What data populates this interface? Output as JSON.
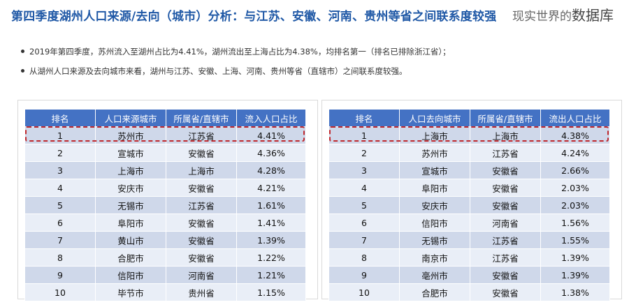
{
  "title": "第四季度湖州人口来源/去向（城市）分析：与江苏、安徽、河南、贵州等省之间联系度较强",
  "watermark": {
    "prefix": "现实世界的",
    "emphasis": "数据库"
  },
  "bullets": [
    "2019年第四季度，苏州流入至湖州占比为4.41%，湖州流出至上海占比为4.38%，均排名第一（排名已排除浙江省）；",
    "从湖州人口来源及去向城市来看，湖州与江苏、安徽、上海、河南、贵州等省（直辖市）之间联系度较强。"
  ],
  "inflow_table": {
    "headers": [
      "排名",
      "人口来源城市",
      "所属省/直辖市",
      "流入人口占比"
    ],
    "rows": [
      [
        "1",
        "苏州市",
        "江苏省",
        "4.41%"
      ],
      [
        "2",
        "宣城市",
        "安徽省",
        "4.36%"
      ],
      [
        "3",
        "上海市",
        "上海市",
        "4.28%"
      ],
      [
        "4",
        "安庆市",
        "安徽省",
        "4.21%"
      ],
      [
        "5",
        "无锡市",
        "江苏省",
        "1.61%"
      ],
      [
        "6",
        "阜阳市",
        "安徽省",
        "1.41%"
      ],
      [
        "7",
        "黄山市",
        "安徽省",
        "1.39%"
      ],
      [
        "8",
        "合肥市",
        "安徽省",
        "1.22%"
      ],
      [
        "9",
        "信阳市",
        "河南省",
        "1.21%"
      ],
      [
        "10",
        "毕节市",
        "贵州省",
        "1.15%"
      ]
    ]
  },
  "outflow_table": {
    "headers": [
      "排名",
      "人口去向城市",
      "所属省/直辖市",
      "流出人口占比"
    ],
    "rows": [
      [
        "1",
        "上海市",
        "上海市",
        "4.38%"
      ],
      [
        "2",
        "苏州市",
        "江苏省",
        "4.24%"
      ],
      [
        "3",
        "宣城市",
        "安徽省",
        "2.66%"
      ],
      [
        "4",
        "阜阳市",
        "安徽省",
        "2.03%"
      ],
      [
        "5",
        "安庆市",
        "安徽省",
        "2.03%"
      ],
      [
        "6",
        "信阳市",
        "河南省",
        "1.56%"
      ],
      [
        "7",
        "无锡市",
        "江苏省",
        "1.55%"
      ],
      [
        "8",
        "南京市",
        "江苏省",
        "1.39%"
      ],
      [
        "9",
        "亳州市",
        "安徽省",
        "1.39%"
      ],
      [
        "10",
        "合肥市",
        "安徽省",
        "1.38%"
      ]
    ]
  },
  "colors": {
    "title": "#1f58a6",
    "header_bg": "#4472c4",
    "row_dark": "#cfd8ea",
    "row_light": "#e9eef7",
    "highlight": "#c0282d"
  }
}
